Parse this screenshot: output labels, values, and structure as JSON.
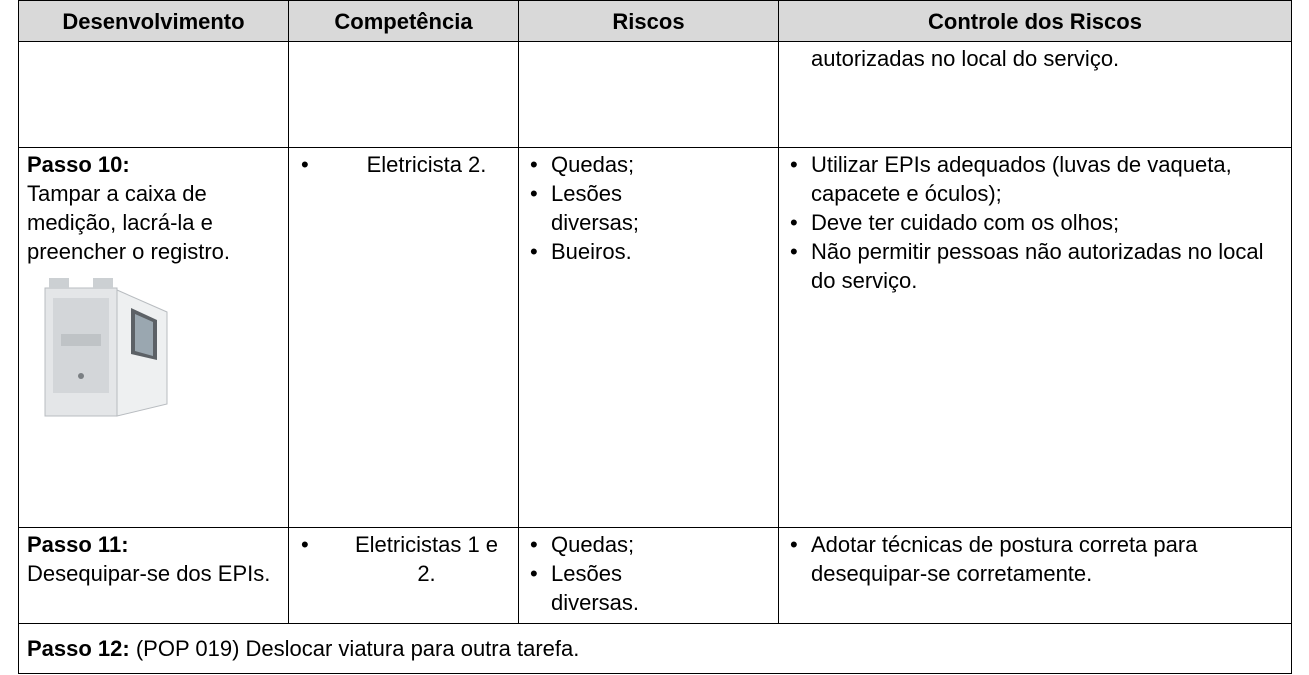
{
  "header": {
    "columns": [
      "Desenvolvimento",
      "Competência",
      "Riscos",
      "Controle dos Riscos"
    ]
  },
  "rows": [
    {
      "controle": [
        "autorizadas no local do serviço."
      ]
    },
    {
      "step": "Passo 10:",
      "description": "Tampar a caixa de medição, lacrá-la e preencher o registro.",
      "competencia": [
        "Eletricista 2."
      ],
      "riscos": [
        "Quedas;",
        "Lesões diversas;",
        "Bueiros."
      ],
      "controle": [
        "Utilizar EPIs adequados (luvas de vaqueta, capacete e óculos);",
        "Deve ter cuidado com os olhos;",
        "Não permitir pessoas não autorizadas no local do serviço."
      ]
    },
    {
      "step": "Passo 11:",
      "description": "Desequipar-se dos EPIs.",
      "competencia": [
        "Eletricistas 1 e 2."
      ],
      "riscos": [
        "Quedas;",
        "Lesões diversas."
      ],
      "controle": [
        "Adotar técnicas de postura correta para desequipar-se corretamente."
      ]
    },
    {
      "step": "Passo 12:",
      "description": "(POP 019) Deslocar viatura para outra tarefa."
    }
  ]
}
